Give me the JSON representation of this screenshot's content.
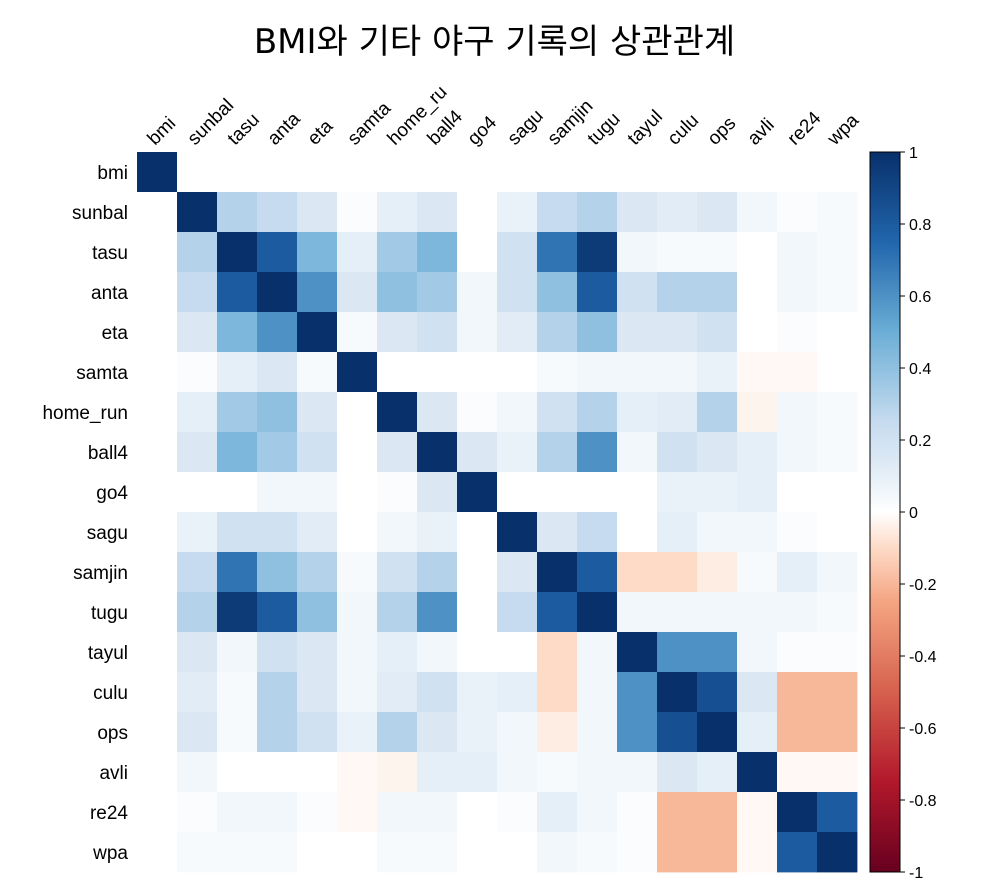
{
  "title": "BMI와 기타 야구 기록의 상관관계",
  "chart_data": {
    "type": "heatmap",
    "title": "BMI와 기타 야구 기록의 상관관계",
    "row_labels": [
      "bmi",
      "sunbal",
      "tasu",
      "anta",
      "eta",
      "samta",
      "home_run",
      "ball4",
      "go4",
      "sagu",
      "samjin",
      "tugu",
      "tayul",
      "culu",
      "ops",
      "avli",
      "re24",
      "wpa"
    ],
    "col_labels": [
      "bmi",
      "sunbal",
      "tasu",
      "anta",
      "eta",
      "samta",
      "home_ru",
      "ball4",
      "go4",
      "sagu",
      "samjin",
      "tugu",
      "tayul",
      "culu",
      "ops",
      "avli",
      "re24",
      "wpa"
    ],
    "matrix": [
      [
        1,
        0,
        0,
        0,
        0,
        0,
        0,
        0,
        0,
        0,
        0,
        0,
        0,
        0,
        0,
        0,
        0,
        0
      ],
      [
        0,
        1,
        0.3,
        0.25,
        0.15,
        0.02,
        0.1,
        0.15,
        0,
        0.08,
        0.25,
        0.3,
        0.15,
        0.12,
        0.15,
        0.05,
        0.02,
        0.03
      ],
      [
        0,
        0.3,
        1,
        0.8,
        0.45,
        0.1,
        0.35,
        0.45,
        0,
        0.2,
        0.7,
        0.95,
        0.05,
        0.03,
        0.03,
        0,
        0.05,
        0.03
      ],
      [
        0,
        0.25,
        0.8,
        1,
        0.6,
        0.15,
        0.4,
        0.35,
        0.05,
        0.2,
        0.4,
        0.8,
        0.2,
        0.3,
        0.3,
        0,
        0.05,
        0.03
      ],
      [
        0,
        0.15,
        0.45,
        0.6,
        1,
        0.03,
        0.15,
        0.2,
        0.05,
        0.12,
        0.3,
        0.4,
        0.15,
        0.15,
        0.2,
        0,
        0.02,
        0
      ],
      [
        0,
        0.02,
        0.1,
        0.15,
        0.03,
        1,
        0,
        0,
        0,
        0,
        0.03,
        0.05,
        0.05,
        0.05,
        0.08,
        -0.02,
        -0.02,
        0
      ],
      [
        0,
        0.1,
        0.35,
        0.4,
        0.15,
        0,
        1,
        0.15,
        0.02,
        0.05,
        0.2,
        0.3,
        0.1,
        0.12,
        0.3,
        -0.03,
        0.05,
        0.03
      ],
      [
        0,
        0.15,
        0.45,
        0.35,
        0.2,
        0,
        0.15,
        1,
        0.15,
        0.08,
        0.3,
        0.6,
        0.05,
        0.2,
        0.15,
        0.1,
        0.05,
        0.03
      ],
      [
        0,
        0,
        0,
        0.05,
        0.05,
        0,
        0.02,
        0.15,
        1,
        0,
        0,
        0,
        0,
        0.08,
        0.08,
        0.1,
        0,
        0
      ],
      [
        0,
        0.08,
        0.2,
        0.2,
        0.12,
        0,
        0.05,
        0.08,
        0,
        1,
        0.15,
        0.25,
        0,
        0.1,
        0.05,
        0.05,
        0.02,
        0
      ],
      [
        0,
        0.25,
        0.7,
        0.4,
        0.3,
        0.03,
        0.2,
        0.3,
        0,
        0.15,
        1,
        0.8,
        -0.1,
        -0.1,
        -0.05,
        0.03,
        0.1,
        0.05
      ],
      [
        0,
        0.3,
        0.95,
        0.8,
        0.4,
        0.05,
        0.3,
        0.6,
        0,
        0.25,
        0.8,
        1,
        0.05,
        0.05,
        0.05,
        0.05,
        0.05,
        0.03
      ],
      [
        0,
        0.15,
        0.05,
        0.2,
        0.15,
        0.05,
        0.1,
        0.05,
        0,
        0,
        -0.1,
        0.05,
        1,
        0.6,
        0.6,
        0.05,
        0.02,
        0.02
      ],
      [
        0,
        0.12,
        0.03,
        0.3,
        0.15,
        0.05,
        0.12,
        0.2,
        0.08,
        0.1,
        -0.1,
        0.05,
        0.6,
        1,
        0.85,
        0.15,
        -0.2,
        -0.2
      ],
      [
        0,
        0.15,
        0.03,
        0.3,
        0.2,
        0.08,
        0.3,
        0.15,
        0.08,
        0.05,
        -0.05,
        0.05,
        0.6,
        0.85,
        1,
        0.1,
        -0.2,
        -0.2
      ],
      [
        0,
        0.05,
        0,
        0,
        0,
        -0.02,
        -0.03,
        0.1,
        0.1,
        0.05,
        0.03,
        0.05,
        0.05,
        0.15,
        0.1,
        1,
        -0.02,
        -0.02
      ],
      [
        0,
        0.02,
        0.05,
        0.05,
        0.02,
        -0.02,
        0.05,
        0.05,
        0,
        0.02,
        0.1,
        0.05,
        0.02,
        -0.2,
        -0.2,
        -0.02,
        1,
        0.8
      ],
      [
        0,
        0.03,
        0.03,
        0.03,
        0,
        0,
        0.03,
        0.03,
        0,
        0,
        0.05,
        0.03,
        0.02,
        -0.2,
        -0.2,
        -0.02,
        0.8,
        1
      ]
    ],
    "color_scale": {
      "range": [
        -1,
        1
      ],
      "ticks": [
        "1",
        "0.8",
        "0.6",
        "0.4",
        "0.2",
        "0",
        "-0.2",
        "-0.4",
        "-0.6",
        "-0.8",
        "-1"
      ],
      "stops": [
        {
          "v": -1,
          "color": "#67001f"
        },
        {
          "v": -0.75,
          "color": "#b2182b"
        },
        {
          "v": -0.5,
          "color": "#d6604d"
        },
        {
          "v": -0.25,
          "color": "#f4a582"
        },
        {
          "v": -0.1,
          "color": "#fddbc7"
        },
        {
          "v": 0,
          "color": "#ffffff"
        },
        {
          "v": 0.1,
          "color": "#e5eff7"
        },
        {
          "v": 0.25,
          "color": "#c6dbef"
        },
        {
          "v": 0.5,
          "color": "#6baed6"
        },
        {
          "v": 0.75,
          "color": "#2166ac"
        },
        {
          "v": 1,
          "color": "#08306b"
        }
      ]
    },
    "legend": "right"
  }
}
